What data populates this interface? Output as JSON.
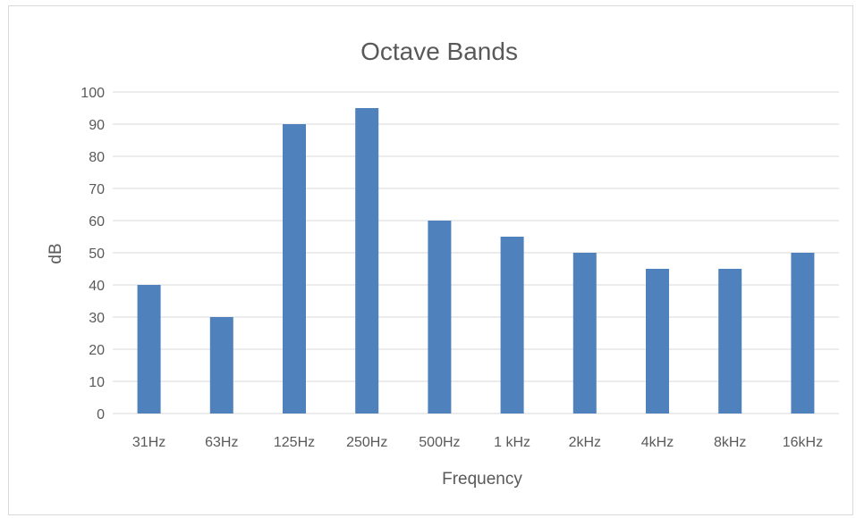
{
  "chart_data": {
    "type": "bar",
    "title": "Octave Bands",
    "xlabel": "Frequency",
    "ylabel": "dB",
    "categories": [
      "31Hz",
      "63Hz",
      "125Hz",
      "250Hz",
      "500Hz",
      "1 kHz",
      "2kHz",
      "4kHz",
      "8kHz",
      "16kHz"
    ],
    "values": [
      40,
      30,
      90,
      95,
      60,
      55,
      50,
      45,
      45,
      50
    ],
    "ylim": [
      0,
      100
    ],
    "yticks": [
      0,
      10,
      20,
      30,
      40,
      50,
      60,
      70,
      80,
      90,
      100
    ],
    "grid": true,
    "legend": "none",
    "bar_color": "#4f81bd"
  }
}
